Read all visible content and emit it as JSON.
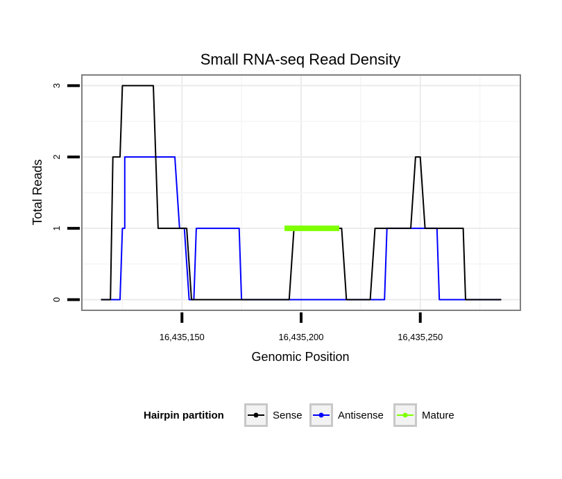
{
  "chart_data": {
    "type": "line",
    "title": "Small RNA-seq Read Density",
    "xlabel": "Genomic Position",
    "ylabel": "Total Reads",
    "xlim": [
      16435108,
      16435292
    ],
    "ylim": [
      -0.15,
      3.15
    ],
    "xticks": [
      {
        "value": 16435150,
        "label": "16,435,150"
      },
      {
        "value": 16435200,
        "label": "16,435,200"
      },
      {
        "value": 16435250,
        "label": "16,435,250"
      }
    ],
    "yticks": [
      {
        "value": 0,
        "label": "0"
      },
      {
        "value": 1,
        "label": "1"
      },
      {
        "value": 2,
        "label": "2"
      },
      {
        "value": 3,
        "label": "3"
      }
    ],
    "grid": true,
    "legend": {
      "title": "Hairpin partition",
      "position": "bottom"
    },
    "series": [
      {
        "name": "Sense",
        "color": "#000000",
        "x": [
          16435116,
          16435120,
          16435121,
          16435124,
          16435125,
          16435138,
          16435140,
          16435152,
          16435154,
          16435155,
          16435157,
          16435157,
          16435195,
          16435197,
          16435217,
          16435219,
          16435229,
          16435231,
          16435246,
          16435248,
          16435250,
          16435252,
          16435268,
          16435269,
          16435284
        ],
        "y": [
          0,
          0,
          2,
          2,
          3,
          3,
          1,
          1,
          0,
          0,
          0,
          0,
          0,
          1,
          1,
          0,
          0,
          1,
          1,
          2,
          2,
          1,
          1,
          0,
          0
        ]
      },
      {
        "name": "Antisense",
        "color": "#0000ff",
        "x": [
          16435116,
          16435124,
          16435125,
          16435126,
          16435126,
          16435147,
          16435149,
          16435151,
          16435153,
          16435155,
          16435156,
          16435174,
          16435175,
          16435235,
          16435236,
          16435257,
          16435258,
          16435284
        ],
        "y": [
          0,
          0,
          1,
          1,
          2,
          2,
          1,
          1,
          0,
          0,
          1,
          1,
          0,
          0,
          1,
          1,
          0,
          0
        ]
      },
      {
        "name": "Mature",
        "color": "#7fff00",
        "x": [
          16435193,
          16435216
        ],
        "y": [
          1,
          1
        ]
      }
    ]
  }
}
